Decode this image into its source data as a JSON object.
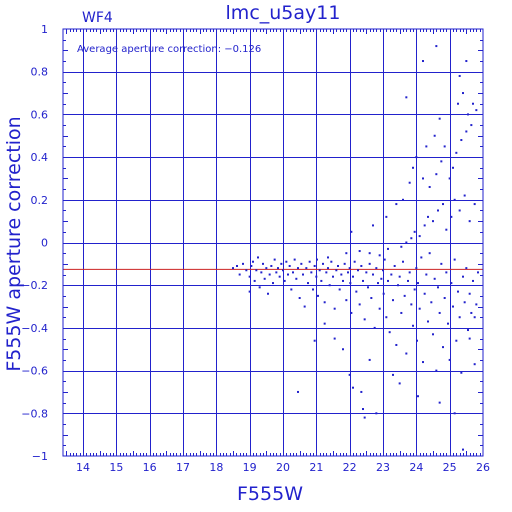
{
  "chart_data": {
    "type": "scatter",
    "title": "lmc_u5ay11",
    "panel_label": "WF4",
    "annotation": "Average aperture correction: −0.126",
    "xlabel": "F555W",
    "ylabel": "F555W aperture correction",
    "xlim": [
      13.4,
      26.0
    ],
    "ylim": [
      -1.0,
      1.0
    ],
    "x_ticks": [
      14,
      15,
      16,
      17,
      18,
      19,
      20,
      21,
      22,
      23,
      24,
      25,
      26
    ],
    "y_ticks": [
      -1,
      -0.8,
      -0.6,
      -0.4,
      -0.2,
      0,
      0.2,
      0.4,
      0.6,
      0.8,
      1
    ],
    "x_tick_labels": [
      "14",
      "15",
      "16",
      "17",
      "18",
      "19",
      "20",
      "21",
      "22",
      "23",
      "24",
      "25",
      "26"
    ],
    "y_tick_labels": [
      "−1",
      "−0.8",
      "−0.6",
      "−0.4",
      "−0.2",
      "0",
      "0.2",
      "0.4",
      "0.6",
      "0.8",
      "1"
    ],
    "grid": true,
    "reference_line_y": -0.126,
    "colors": {
      "axes": "#2222cc",
      "points": "#2222cc",
      "reference_line": "#cc2222"
    },
    "points": [
      [
        18.5,
        -0.12
      ],
      [
        18.62,
        -0.11
      ],
      [
        18.7,
        -0.15
      ],
      [
        18.8,
        -0.1
      ],
      [
        18.9,
        -0.13
      ],
      [
        19.0,
        -0.16
      ],
      [
        19.0,
        -0.23
      ],
      [
        19.05,
        -0.11
      ],
      [
        19.1,
        -0.09
      ],
      [
        19.15,
        -0.18
      ],
      [
        19.2,
        -0.13
      ],
      [
        19.25,
        -0.07
      ],
      [
        19.3,
        -0.21
      ],
      [
        19.35,
        -0.14
      ],
      [
        19.4,
        -0.1
      ],
      [
        19.45,
        -0.17
      ],
      [
        19.5,
        -0.12
      ],
      [
        19.55,
        -0.24
      ],
      [
        19.6,
        -0.15
      ],
      [
        19.65,
        -0.11
      ],
      [
        19.7,
        -0.19
      ],
      [
        19.75,
        -0.08
      ],
      [
        19.8,
        -0.14
      ],
      [
        19.85,
        -0.12
      ],
      [
        19.9,
        -0.16
      ],
      [
        19.95,
        -0.1
      ],
      [
        20.0,
        -0.13
      ],
      [
        20.05,
        -0.18
      ],
      [
        20.1,
        -0.09
      ],
      [
        20.15,
        -0.15
      ],
      [
        20.2,
        -0.11
      ],
      [
        20.25,
        -0.22
      ],
      [
        20.3,
        -0.14
      ],
      [
        20.35,
        -0.08
      ],
      [
        20.4,
        -0.17
      ],
      [
        20.45,
        -0.12
      ],
      [
        20.5,
        -0.26
      ],
      [
        20.55,
        -0.1
      ],
      [
        20.6,
        -0.15
      ],
      [
        20.65,
        -0.3
      ],
      [
        20.7,
        -0.12
      ],
      [
        20.75,
        -0.19
      ],
      [
        20.8,
        -0.09
      ],
      [
        20.85,
        -0.14
      ],
      [
        20.9,
        -0.22
      ],
      [
        20.95,
        -0.11
      ],
      [
        21.0,
        -0.16
      ],
      [
        21.02,
        -0.08
      ],
      [
        21.05,
        -0.25
      ],
      [
        21.1,
        -0.13
      ],
      [
        21.15,
        -0.18
      ],
      [
        21.2,
        -0.1
      ],
      [
        21.25,
        -0.28
      ],
      [
        21.3,
        -0.14
      ],
      [
        21.35,
        -0.12
      ],
      [
        21.4,
        -0.2
      ],
      [
        21.45,
        -0.09
      ],
      [
        21.5,
        -0.16
      ],
      [
        21.55,
        -0.31
      ],
      [
        21.6,
        -0.13
      ],
      [
        21.65,
        -0.11
      ],
      [
        21.7,
        -0.22
      ],
      [
        21.75,
        -0.15
      ],
      [
        21.8,
        -0.18
      ],
      [
        21.85,
        -0.1
      ],
      [
        21.9,
        -0.27
      ],
      [
        21.95,
        -0.14
      ],
      [
        22.0,
        -0.12
      ],
      [
        22.02,
        -0.19
      ],
      [
        22.05,
        -0.33
      ],
      [
        22.1,
        -0.16
      ],
      [
        22.15,
        -0.09
      ],
      [
        22.2,
        -0.23
      ],
      [
        22.25,
        -0.13
      ],
      [
        22.3,
        -0.29
      ],
      [
        22.35,
        -0.11
      ],
      [
        22.4,
        -0.18
      ],
      [
        22.45,
        -0.36
      ],
      [
        22.5,
        -0.14
      ],
      [
        22.55,
        -0.21
      ],
      [
        22.6,
        -0.1
      ],
      [
        22.65,
        -0.26
      ],
      [
        22.7,
        -0.15
      ],
      [
        22.75,
        -0.4
      ],
      [
        22.8,
        -0.12
      ],
      [
        22.85,
        -0.19
      ],
      [
        22.9,
        -0.31
      ],
      [
        22.95,
        -0.17
      ],
      [
        23.0,
        -0.13
      ],
      [
        23.02,
        -0.24
      ],
      [
        23.05,
        -0.08
      ],
      [
        23.1,
        -0.35
      ],
      [
        23.15,
        -0.18
      ],
      [
        23.2,
        -0.42
      ],
      [
        23.25,
        -0.15
      ],
      [
        23.3,
        -0.27
      ],
      [
        23.35,
        -0.11
      ],
      [
        23.4,
        -0.48
      ],
      [
        23.45,
        -0.2
      ],
      [
        23.5,
        -0.16
      ],
      [
        23.55,
        -0.33
      ],
      [
        23.6,
        -0.09
      ],
      [
        23.65,
        -0.25
      ],
      [
        23.7,
        -0.52
      ],
      [
        23.75,
        -0.18
      ],
      [
        23.8,
        -0.14
      ],
      [
        23.85,
        -0.29
      ],
      [
        23.9,
        -0.39
      ],
      [
        23.95,
        -0.22
      ],
      [
        24.0,
        -0.12
      ],
      [
        24.02,
        -0.46
      ],
      [
        24.05,
        -0.19
      ],
      [
        24.1,
        -0.31
      ],
      [
        24.15,
        -0.07
      ],
      [
        24.2,
        -0.56
      ],
      [
        24.25,
        -0.24
      ],
      [
        24.3,
        -0.15
      ],
      [
        24.35,
        -0.37
      ],
      [
        24.4,
        -0.05
      ],
      [
        24.45,
        -0.28
      ],
      [
        24.5,
        -0.43
      ],
      [
        24.55,
        -0.17
      ],
      [
        24.6,
        -0.6
      ],
      [
        24.65,
        -0.21
      ],
      [
        24.7,
        -0.33
      ],
      [
        24.75,
        -0.1
      ],
      [
        24.8,
        -0.49
      ],
      [
        24.85,
        -0.26
      ],
      [
        24.9,
        -0.14
      ],
      [
        24.95,
        -0.38
      ],
      [
        25.0,
        -0.55
      ],
      [
        25.05,
        -0.19
      ],
      [
        25.1,
        -0.3
      ],
      [
        25.15,
        -0.08
      ],
      [
        25.2,
        -0.46
      ],
      [
        25.25,
        -0.23
      ],
      [
        25.3,
        -0.35
      ],
      [
        25.35,
        -0.61
      ],
      [
        25.4,
        -0.16
      ],
      [
        25.45,
        -0.28
      ],
      [
        25.5,
        -0.12
      ],
      [
        25.55,
        -0.41
      ],
      [
        25.6,
        -0.24
      ],
      [
        25.65,
        -0.33
      ],
      [
        25.7,
        -0.18
      ],
      [
        25.75,
        -0.57
      ],
      [
        25.8,
        -0.29
      ],
      [
        25.85,
        -0.14
      ],
      [
        21.35,
        -0.07
      ],
      [
        21.9,
        -0.05
      ],
      [
        22.3,
        -0.04
      ],
      [
        22.6,
        -0.05
      ],
      [
        22.9,
        -0.06
      ],
      [
        23.15,
        -0.03
      ],
      [
        23.55,
        -0.02
      ],
      [
        23.7,
        0.0
      ],
      [
        23.85,
        0.02
      ],
      [
        23.95,
        0.05
      ],
      [
        24.1,
        0.03
      ],
      [
        24.25,
        0.08
      ],
      [
        24.35,
        0.12
      ],
      [
        24.5,
        0.1
      ],
      [
        24.65,
        0.15
      ],
      [
        24.8,
        0.18
      ],
      [
        24.9,
        0.06
      ],
      [
        25.05,
        0.12
      ],
      [
        25.15,
        0.2
      ],
      [
        25.3,
        0.15
      ],
      [
        25.45,
        0.22
      ],
      [
        25.6,
        0.1
      ],
      [
        25.75,
        0.18
      ],
      [
        22.05,
        0.05
      ],
      [
        22.7,
        0.08
      ],
      [
        23.1,
        0.12
      ],
      [
        23.4,
        0.18
      ],
      [
        23.6,
        0.2
      ],
      [
        23.8,
        0.28
      ],
      [
        23.9,
        0.35
      ],
      [
        24.0,
        0.4
      ],
      [
        24.2,
        0.3
      ],
      [
        24.4,
        0.26
      ],
      [
        24.6,
        0.32
      ],
      [
        24.75,
        0.38
      ],
      [
        24.85,
        0.45
      ],
      [
        25.0,
        0.3
      ],
      [
        25.1,
        0.35
      ],
      [
        25.2,
        0.42
      ],
      [
        25.35,
        0.48
      ],
      [
        25.5,
        0.52
      ],
      [
        25.55,
        0.6
      ],
      [
        25.65,
        0.55
      ],
      [
        25.7,
        0.65
      ],
      [
        25.4,
        0.7
      ],
      [
        25.25,
        0.65
      ],
      [
        25.8,
        0.62
      ],
      [
        24.7,
        0.58
      ],
      [
        24.55,
        0.5
      ],
      [
        24.3,
        0.45
      ],
      [
        25.3,
        0.78
      ],
      [
        25.5,
        0.85
      ],
      [
        24.2,
        0.85
      ],
      [
        24.6,
        0.92
      ],
      [
        23.7,
        0.68
      ],
      [
        21.25,
        -0.38
      ],
      [
        21.55,
        -0.45
      ],
      [
        21.8,
        -0.5
      ],
      [
        22.0,
        -0.62
      ],
      [
        22.1,
        -0.68
      ],
      [
        22.35,
        -0.7
      ],
      [
        22.4,
        -0.78
      ],
      [
        22.45,
        -0.82
      ],
      [
        22.6,
        -0.55
      ],
      [
        22.8,
        -0.8
      ],
      [
        23.3,
        -0.62
      ],
      [
        23.5,
        -0.66
      ],
      [
        24.05,
        -0.72
      ],
      [
        24.7,
        -0.75
      ],
      [
        25.15,
        -0.8
      ],
      [
        25.4,
        -0.97
      ],
      [
        20.45,
        -0.7
      ],
      [
        20.95,
        -0.46
      ],
      [
        25.6,
        -0.45
      ],
      [
        25.75,
        -0.35
      ]
    ]
  }
}
